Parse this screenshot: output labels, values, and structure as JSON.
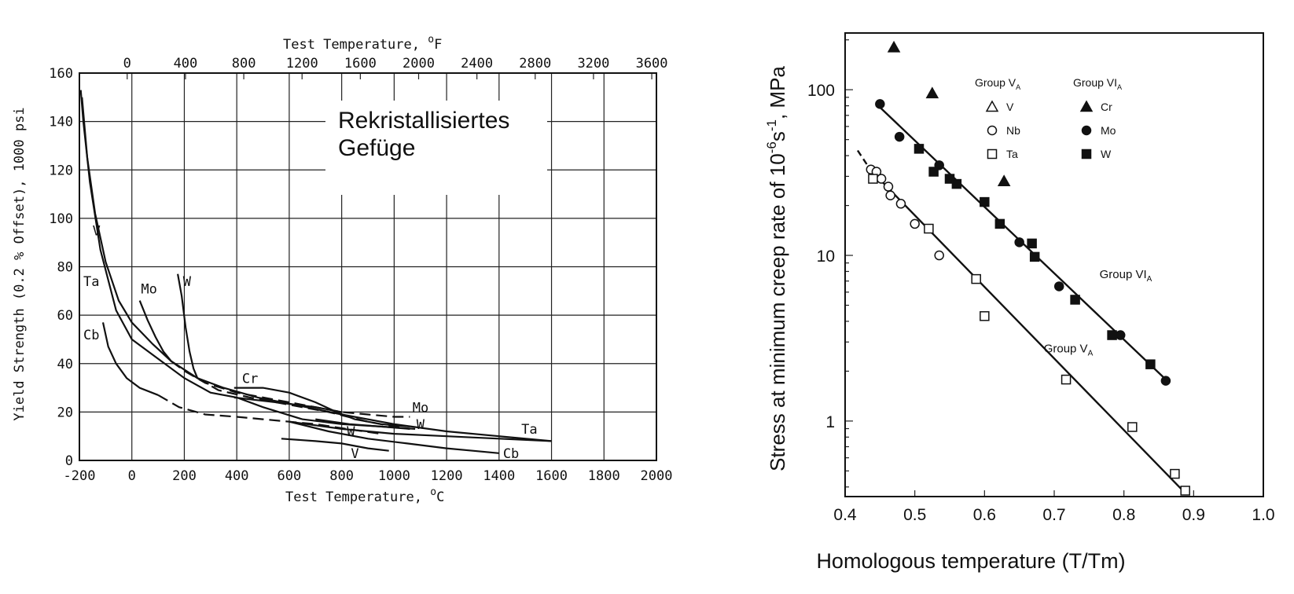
{
  "chart_data": [
    {
      "type": "line",
      "title": "",
      "annotation": "Rekristallisiertes\nGefüge",
      "annotation_line1": "Rekristallisiertes",
      "annotation_line2": "Gefüge",
      "xlabel": "Test Temperature, °C",
      "xlabel_main": "Test Temperature, ",
      "xlabel_unit": "C",
      "x2label": "Test Temperature, °F",
      "x2label_main": "Test Temperature, ",
      "x2label_unit": "F",
      "degree_symbol": "o",
      "ylabel": "Yield Strength (0.2 % Offset), 1000 psi",
      "xlim": [
        -200,
        2000
      ],
      "ylim": [
        0,
        160
      ],
      "x_ticks": [
        "-200",
        "0",
        "200",
        "400",
        "600",
        "800",
        "1000",
        "1200",
        "1400",
        "1600",
        "1800",
        "2000"
      ],
      "x2_ticks": [
        "0",
        "400",
        "800",
        "1200",
        "1600",
        "2000",
        "2400",
        "2800",
        "3200",
        "3600"
      ],
      "y_ticks": [
        "0",
        "20",
        "40",
        "60",
        "80",
        "100",
        "120",
        "140",
        "160"
      ],
      "grid": true,
      "series": [
        {
          "name": "V",
          "style": "solid",
          "points": [
            [
              -195,
              153
            ],
            [
              -185,
              140
            ],
            [
              -160,
              115
            ],
            [
              -120,
              87
            ],
            [
              -60,
              62
            ],
            [
              0,
              50
            ],
            [
              100,
              42
            ],
            [
              200,
              34
            ],
            [
              300,
              28
            ],
            [
              400,
              26
            ],
            [
              500,
              22
            ],
            [
              650,
              17
            ],
            [
              800,
              15
            ],
            [
              950,
              14
            ],
            [
              1060,
              13
            ]
          ]
        },
        {
          "name": "V",
          "style": "solid",
          "points": [
            [
              570,
              9
            ],
            [
              700,
              8
            ],
            [
              800,
              7
            ],
            [
              900,
              5
            ],
            [
              980,
              4
            ]
          ]
        },
        {
          "name": "Ta",
          "style": "solid",
          "points": [
            [
              -190,
              150
            ],
            [
              -170,
              125
            ],
            [
              -140,
              102
            ],
            [
              -100,
              82
            ],
            [
              -50,
              66
            ],
            [
              0,
              57
            ],
            [
              80,
              48
            ],
            [
              150,
              41
            ],
            [
              250,
              34
            ],
            [
              350,
              30
            ],
            [
              480,
              26
            ],
            [
              620,
              23
            ],
            [
              800,
              19
            ],
            [
              1000,
              15
            ],
            [
              1200,
              12
            ],
            [
              1400,
              10
            ],
            [
              1600,
              8
            ]
          ]
        },
        {
          "name": "Ta",
          "style": "solid",
          "points": [
            [
              600,
              16
            ],
            [
              800,
              13
            ],
            [
              1000,
              11
            ],
            [
              1200,
              10
            ],
            [
              1400,
              9
            ],
            [
              1600,
              8
            ]
          ]
        },
        {
          "name": "Cb",
          "style": "solid",
          "points": [
            [
              -110,
              57
            ],
            [
              -90,
              47
            ],
            [
              -60,
              40
            ],
            [
              -20,
              34
            ],
            [
              30,
              30
            ],
            [
              100,
              27
            ]
          ]
        },
        {
          "name": "Cb",
          "style": "dashed",
          "points": [
            [
              100,
              27
            ],
            [
              180,
              22
            ],
            [
              280,
              19
            ],
            [
              400,
              18
            ],
            [
              500,
              17
            ],
            [
              600,
              16
            ],
            [
              700,
              15
            ],
            [
              820,
              13
            ],
            [
              950,
              11
            ]
          ]
        },
        {
          "name": "Cb",
          "style": "solid",
          "points": [
            [
              600,
              16
            ],
            [
              750,
              12
            ],
            [
              900,
              9
            ],
            [
              1050,
              7
            ],
            [
              1200,
              5
            ],
            [
              1300,
              4
            ],
            [
              1400,
              3
            ]
          ]
        },
        {
          "name": "Mo",
          "style": "solid",
          "points": [
            [
              30,
              66
            ],
            [
              60,
              58
            ],
            [
              90,
              51
            ],
            [
              120,
              45
            ],
            [
              150,
              41
            ]
          ]
        },
        {
          "name": "Mo",
          "style": "dashed",
          "points": [
            [
              150,
              41
            ],
            [
              200,
              37
            ],
            [
              280,
              32
            ],
            [
              400,
              28
            ],
            [
              600,
              24
            ],
            [
              800,
              20
            ],
            [
              900,
              19
            ],
            [
              1000,
              18
            ],
            [
              1060,
              18
            ]
          ]
        },
        {
          "name": "W",
          "style": "solid",
          "points": [
            [
              175,
              77
            ],
            [
              190,
              68
            ],
            [
              205,
              55
            ],
            [
              220,
              45
            ],
            [
              235,
              38
            ],
            [
              250,
              34
            ]
          ]
        },
        {
          "name": "W",
          "style": "dashed",
          "points": [
            [
              250,
              34
            ],
            [
              330,
              29
            ],
            [
              450,
              26
            ],
            [
              600,
              23
            ],
            [
              750,
              20
            ],
            [
              900,
              16
            ],
            [
              1000,
              14
            ],
            [
              1060,
              13
            ]
          ]
        },
        {
          "name": "W",
          "style": "solid",
          "points": [
            [
              700,
              17
            ],
            [
              830,
              15
            ],
            [
              950,
              14
            ],
            [
              1080,
              13
            ]
          ]
        },
        {
          "name": "Cr",
          "style": "solid",
          "points": [
            [
              390,
              30
            ],
            [
              500,
              30
            ],
            [
              600,
              28
            ],
            [
              700,
              24
            ],
            [
              780,
              20
            ],
            [
              850,
              17
            ],
            [
              950,
              15
            ],
            [
              1060,
              14
            ]
          ]
        },
        {
          "name": "Cr",
          "style": "solid",
          "points": [
            [
              390,
              26
            ],
            [
              550,
              24
            ],
            [
              700,
              22
            ],
            [
              800,
              20
            ]
          ]
        }
      ],
      "labels": [
        {
          "text": "V",
          "x": -150,
          "y": 93
        },
        {
          "text": "Ta",
          "x": -185,
          "y": 72
        },
        {
          "text": "Mo",
          "x": 35,
          "y": 69
        },
        {
          "text": "W",
          "x": 195,
          "y": 72
        },
        {
          "text": "Cb",
          "x": -185,
          "y": 50
        },
        {
          "text": "Cr",
          "x": 420,
          "y": 32
        },
        {
          "text": "Mo",
          "x": 1070,
          "y": 20
        },
        {
          "text": "W",
          "x": 1085,
          "y": 13
        },
        {
          "text": "W",
          "x": 820,
          "y": 10
        },
        {
          "text": "V",
          "x": 835,
          "y": 1
        },
        {
          "text": "Ta",
          "x": 1485,
          "y": 11
        },
        {
          "text": "Cb",
          "x": 1415,
          "y": 1
        }
      ]
    },
    {
      "type": "scatter",
      "title": "",
      "xlabel": "Homologous temperature (T/Tm)",
      "ylabel": "Stress at minimum creep rate of 10⁻⁶s⁻¹, MPa",
      "ylabel_main": "Stress at minimum creep rate of 10",
      "ylabel_exp1": "-6",
      "ylabel_mid": "s",
      "ylabel_exp2": "-1",
      "ylabel_tail": ", MPa",
      "xlim": [
        0.4,
        1.0
      ],
      "ylim": [
        0.35,
        220
      ],
      "y_scale": "log",
      "x_ticks": [
        "0.4",
        "0.5",
        "0.6",
        "0.7",
        "0.8",
        "0.9",
        "1.0"
      ],
      "y_ticks": [
        {
          "label": "1",
          "value": 1
        },
        {
          "label": "10",
          "value": 10
        },
        {
          "label": "100",
          "value": 100
        }
      ],
      "legend": {
        "placement": "top-right",
        "group_va_title": "Group V",
        "group_va_sub": "A",
        "group_via_title": "Group VI",
        "group_via_sub": "A",
        "items": [
          {
            "label": "V",
            "marker": "triangle-open"
          },
          {
            "label": "Nb",
            "marker": "circle-open"
          },
          {
            "label": "Ta",
            "marker": "square-open"
          },
          {
            "label": "Cr",
            "marker": "triangle-filled"
          },
          {
            "label": "Mo",
            "marker": "circle-filled"
          },
          {
            "label": "W",
            "marker": "square-filled"
          }
        ]
      },
      "line_labels": [
        {
          "text": "Group VI",
          "sub": "A",
          "x": 0.765,
          "y": 7.3
        },
        {
          "text": "Group V",
          "sub": "A",
          "x": 0.685,
          "y": 2.6
        }
      ],
      "series": [
        {
          "name": "Cr",
          "marker": "triangle-filled",
          "x": [
            0.47,
            0.525,
            0.628
          ],
          "y": [
            180,
            95,
            28
          ]
        },
        {
          "name": "Mo",
          "marker": "circle-filled",
          "x": [
            0.45,
            0.478,
            0.535,
            0.65,
            0.707,
            0.795,
            0.86
          ],
          "y": [
            82,
            52,
            35,
            12,
            6.5,
            3.3,
            1.75
          ]
        },
        {
          "name": "W",
          "marker": "square-filled",
          "x": [
            0.506,
            0.527,
            0.55,
            0.56,
            0.6,
            0.622,
            0.668,
            0.672,
            0.73,
            0.783,
            0.838
          ],
          "y": [
            44,
            32,
            29,
            27,
            21,
            15.5,
            11.8,
            9.8,
            5.4,
            3.3,
            2.2
          ]
        },
        {
          "name": "Nb",
          "marker": "circle-open",
          "x": [
            0.437,
            0.445,
            0.452,
            0.462,
            0.465,
            0.48,
            0.5,
            0.535
          ],
          "y": [
            33,
            32,
            29,
            26,
            23,
            20.5,
            15.5,
            10
          ]
        },
        {
          "name": "Ta",
          "marker": "square-open",
          "x": [
            0.44,
            0.52,
            0.588,
            0.6,
            0.717,
            0.812,
            0.873,
            0.888
          ],
          "y": [
            29,
            14.5,
            7.2,
            4.3,
            1.78,
            0.92,
            0.48,
            0.38
          ]
        }
      ],
      "fits": [
        {
          "name": "Group VI_A",
          "style": "solid",
          "x": [
            0.445,
            0.862
          ],
          "y": [
            82,
            1.75
          ]
        },
        {
          "name": "Group V_A",
          "style": "solid",
          "x": [
            0.436,
            0.89
          ],
          "y": [
            33,
            0.36
          ]
        },
        {
          "name": "Group V_A extrapolation",
          "style": "dashed",
          "x": [
            0.418,
            0.436
          ],
          "y": [
            43,
            33
          ]
        }
      ]
    }
  ]
}
